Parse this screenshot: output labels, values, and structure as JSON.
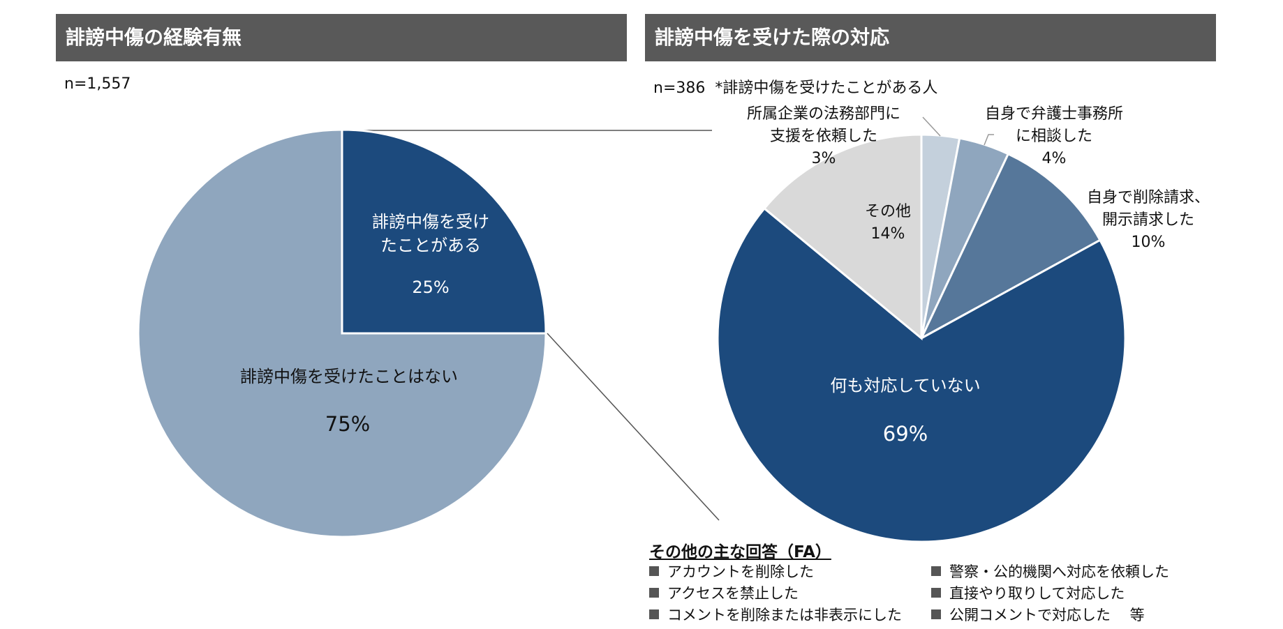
{
  "left_panel": {
    "title": "誹謗中傷の経験有無",
    "n_label": "n=1,557"
  },
  "right_panel": {
    "title": "誹謗中傷を受けた際の対応",
    "n_label": "n=386",
    "n_note": "*誹謗中傷を受けたことがある人"
  },
  "colors": {
    "header_bg": "#595959",
    "navy": "#1c4a7d",
    "steel": "#8fa6be",
    "mid_blue": "#56779a",
    "light_blue": "#c4d0dc",
    "gray": "#d9d9d9"
  },
  "chart_data": [
    {
      "type": "pie",
      "title": "誹謗中傷の経験有無",
      "slices": [
        {
          "label": "誹謗中傷を受けたことがある",
          "value": 25,
          "display": "25%",
          "color": "#1c4a7d"
        },
        {
          "label": "誹謗中傷を受けたことはない",
          "value": 75,
          "display": "75%",
          "color": "#8fa6be"
        }
      ]
    },
    {
      "type": "pie",
      "title": "誹謗中傷を受けた際の対応",
      "slices": [
        {
          "label": "所属企業の法務部門に支援を依頼した",
          "value": 3,
          "display": "3%",
          "color": "#c4d0dc"
        },
        {
          "label": "自身で弁護士事務所に相談した",
          "value": 4,
          "display": "4%",
          "color": "#8fa6be"
        },
        {
          "label": "自身で削除請求、開示請求した",
          "value": 10,
          "display": "10%",
          "color": "#56779a"
        },
        {
          "label": "何も対応していない",
          "value": 69,
          "display": "69%",
          "color": "#1c4a7d"
        },
        {
          "label": "その他",
          "value": 14,
          "display": "14%",
          "color": "#d9d9d9"
        }
      ]
    }
  ],
  "labels": {
    "left_experienced_line1": "誹謗中傷を受け",
    "left_experienced_line2": "たことがある",
    "left_never": "誹謗中傷を受けたことはない",
    "legal_dept_line1": "所属企業の法務部門に",
    "legal_dept_line2": "支援を依頼した",
    "lawyer_line1": "自身で弁護士事務所",
    "lawyer_line2": "に相談した",
    "removal_line1": "自身で削除請求、",
    "removal_line2": "開示請求した",
    "nothing": "何も対応していない",
    "other": "その他"
  },
  "other_answers": {
    "title": "その他の主な回答（FA）",
    "items": [
      "アカウントを削除した",
      "アクセスを禁止した",
      "コメントを削除または非表示にした",
      "警察・公的機関へ対応を依頼した",
      "直接やり取りして対応した",
      "公開コメントで対応した　 等"
    ]
  }
}
